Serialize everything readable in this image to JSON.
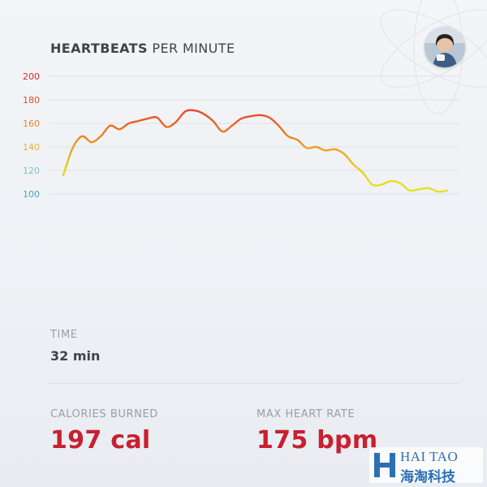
{
  "header": {
    "title_bold": "HEARTBEATS",
    "title_light": "PER MINUTE"
  },
  "chart_data": {
    "type": "line",
    "title": "HEARTBEATS PER MINUTE",
    "ylabel": "",
    "xlabel": "",
    "ylim": [
      100,
      200
    ],
    "yticks": [
      "200",
      "180",
      "160",
      "140",
      "120",
      "100"
    ],
    "grid": true,
    "series": [
      {
        "values": [
          116,
          139,
          149,
          144,
          149,
          158,
          155,
          160,
          162,
          164,
          165,
          157,
          161,
          170,
          171,
          168,
          162,
          153,
          158,
          164,
          166,
          167,
          165,
          158,
          149,
          146,
          139,
          140,
          137,
          138,
          134,
          125,
          118,
          108,
          108,
          111,
          109,
          103,
          104,
          105,
          102,
          103
        ]
      }
    ]
  },
  "stats": {
    "time_label": "TIME",
    "time_value": "32 min",
    "calories_label": "CALORIES BURNED",
    "calories_value": "197 cal",
    "max_hr_label": "MAX HEART RATE",
    "max_hr_value": "175 bpm"
  },
  "watermark": {
    "top": "HAI TAO",
    "bottom": "海淘科技"
  }
}
